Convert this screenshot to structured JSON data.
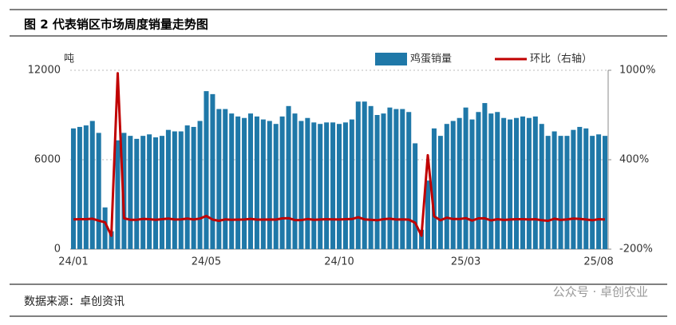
{
  "chart_data": {
    "type": "bar",
    "title": "图 2 代表销区市场周度销量走势图",
    "y_label": "吨",
    "source": "数据来源：卓创资讯",
    "watermark": "公众号 · 卓创农业",
    "categories": [
      "24/01",
      null,
      null,
      null,
      null,
      null,
      null,
      null,
      null,
      null,
      null,
      null,
      null,
      null,
      null,
      null,
      null,
      null,
      null,
      null,
      null,
      "24/05",
      null,
      null,
      null,
      null,
      null,
      null,
      null,
      null,
      null,
      null,
      null,
      null,
      null,
      null,
      null,
      null,
      null,
      null,
      null,
      null,
      "24/10",
      null,
      null,
      null,
      null,
      null,
      null,
      null,
      null,
      null,
      null,
      null,
      null,
      null,
      null,
      null,
      null,
      null,
      null,
      null,
      "25/03",
      null,
      null,
      null,
      null,
      null,
      null,
      null,
      null,
      null,
      null,
      null,
      null,
      null,
      null,
      null,
      null,
      null,
      null,
      null,
      null,
      "25/08",
      null
    ],
    "series": [
      {
        "name": "鸡蛋销量",
        "color": "#1f78a8",
        "values": [
          8100,
          8200,
          8300,
          8600,
          7800,
          2800,
          1200,
          7300,
          7800,
          7600,
          7400,
          7600,
          7700,
          7500,
          7600,
          8000,
          7900,
          7900,
          8300,
          8200,
          8600,
          10600,
          10400,
          9400,
          9400,
          9100,
          8900,
          8800,
          9100,
          8900,
          8700,
          8600,
          8400,
          8900,
          9600,
          9100,
          8600,
          8800,
          8500,
          8400,
          8500,
          8500,
          8400,
          8500,
          8700,
          9900,
          9900,
          9600,
          9000,
          9100,
          9500,
          9400,
          9400,
          9200,
          7100,
          1300,
          4600,
          8100,
          7600,
          8400,
          8600,
          8800,
          9500,
          8700,
          9200,
          9800,
          9100,
          9200,
          8800,
          8700,
          8800,
          8900,
          8800,
          8900,
          8400,
          7600,
          7900,
          7600,
          7600,
          8000,
          8200,
          8100,
          7600,
          7700,
          7600
        ]
      },
      {
        "name": "环比（右轴）",
        "color": "#c00000",
        "axis": "y2",
        "values": [
          0,
          1,
          1,
          4,
          -9,
          -20,
          -110,
          980,
          7,
          -3,
          -3,
          3,
          1,
          -3,
          1,
          5,
          -1,
          0,
          5,
          -1,
          5,
          23,
          -2,
          -10,
          0,
          -3,
          -2,
          -1,
          3,
          -2,
          -2,
          -1,
          -2,
          6,
          8,
          -5,
          -5,
          2,
          -3,
          -1,
          1,
          0,
          -1,
          1,
          2,
          14,
          0,
          -3,
          -6,
          1,
          4,
          -1,
          0,
          -2,
          -23,
          -110,
          430,
          20,
          -6,
          11,
          2,
          2,
          8,
          -8,
          6,
          7,
          -7,
          1,
          -4,
          -1,
          1,
          1,
          -1,
          1,
          -6,
          -10,
          4,
          -4,
          0,
          5,
          3,
          -1,
          -6,
          1,
          -1
        ]
      }
    ],
    "ylim": [
      0,
      12000
    ],
    "yticks": [
      0,
      6000,
      12000
    ],
    "y2lim": [
      -200,
      1000
    ],
    "y2ticks": [
      {
        "value": -200,
        "label": "-200%"
      },
      {
        "value": 400,
        "label": "400%"
      },
      {
        "value": 1000,
        "label": "1000%"
      }
    ],
    "grid": true,
    "legend": "top-right"
  }
}
